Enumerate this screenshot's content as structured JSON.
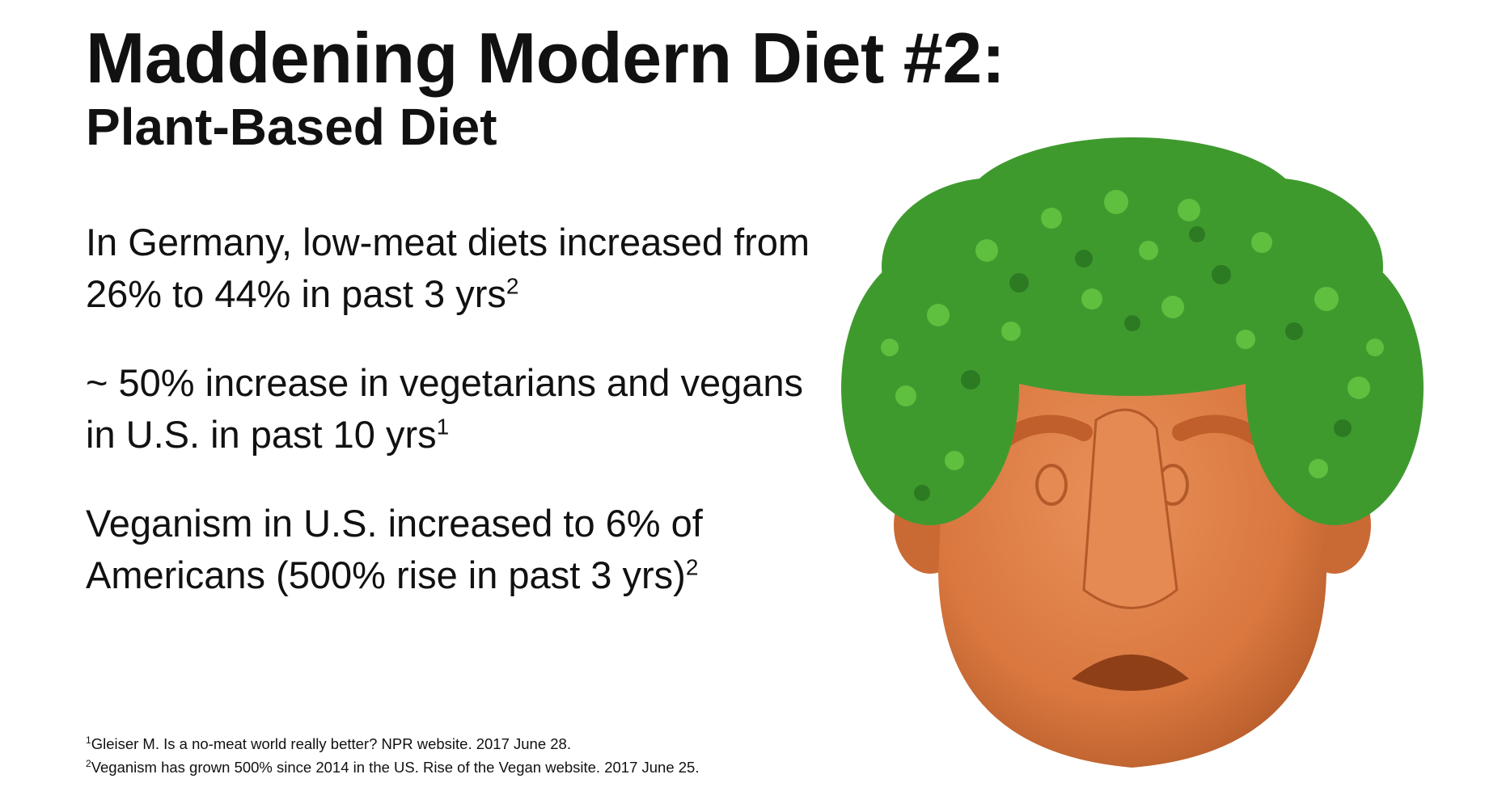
{
  "slide": {
    "title": "Maddening Modern Diet #2:",
    "subtitle": "Plant-Based Diet",
    "bullets": [
      {
        "text": "In Germany, low-meat diets increased from 26% to 44% in past 3 yrs",
        "ref": "2"
      },
      {
        "text": "~ 50% increase in vegetarians and vegans in U.S. in past 10 yrs",
        "ref": "1"
      },
      {
        "text": "Veganism in U.S. increased to 6% of Americans (500% rise in past 3 yrs)",
        "ref": "2"
      }
    ],
    "references": [
      {
        "num": "1",
        "text": "Gleiser M. Is a no-meat world really better? NPR website. 2017 June 28."
      },
      {
        "num": "2",
        "text": "Veganism has grown 500% since 2014 in the US. Rise of the Vegan website. 2017 June 25."
      }
    ]
  },
  "illustration": {
    "icon": "chia-pet-head-icon",
    "clay_color": "#d9773f",
    "sprout_color": "#3f9a2e"
  }
}
